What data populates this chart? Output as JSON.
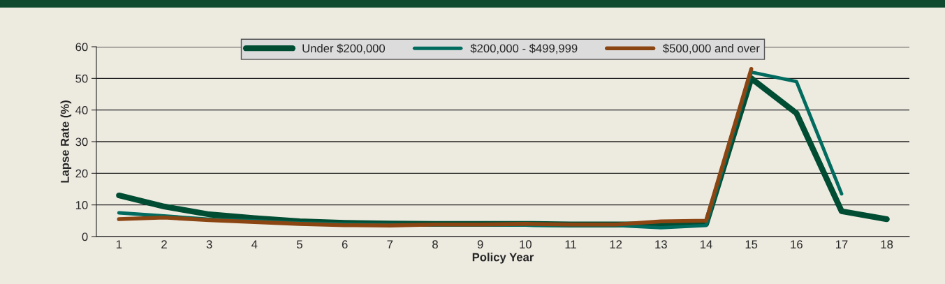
{
  "chart_data": {
    "type": "line",
    "xlabel": "Policy Year",
    "ylabel": "Lapse Rate (%)",
    "categories": [
      "1",
      "2",
      "3",
      "4",
      "5",
      "6",
      "7",
      "8",
      "9",
      "10",
      "11",
      "12",
      "13",
      "14",
      "15",
      "16",
      "17",
      "18"
    ],
    "series": [
      {
        "name": "Under $200,000",
        "color": "#004d33",
        "values": [
          13,
          9.5,
          7,
          5.8,
          4.8,
          4.3,
          4.1,
          4,
          4,
          4,
          3.8,
          3.8,
          3.8,
          4,
          50,
          39,
          8,
          5.5
        ]
      },
      {
        "name": "$200,000 - $499,999",
        "color": "#006b5e",
        "values": [
          7.5,
          6.5,
          5.5,
          5,
          4.3,
          4,
          3.8,
          3.6,
          3.6,
          3.6,
          3.5,
          3.5,
          2.8,
          3.5,
          52,
          49,
          13.5,
          null
        ]
      },
      {
        "name": "$500,000 and over",
        "color": "#8b4513",
        "values": [
          5.5,
          6,
          5.2,
          4.6,
          4,
          3.6,
          3.5,
          3.8,
          3.8,
          4,
          3.8,
          3.8,
          4.8,
          5,
          53,
          null,
          null,
          null
        ]
      }
    ],
    "ylim": [
      0,
      60
    ],
    "yticks": [
      0,
      10,
      20,
      30,
      40,
      50,
      60
    ],
    "grid": "y",
    "legend": "top",
    "marker": "none",
    "line_style": "solid"
  }
}
